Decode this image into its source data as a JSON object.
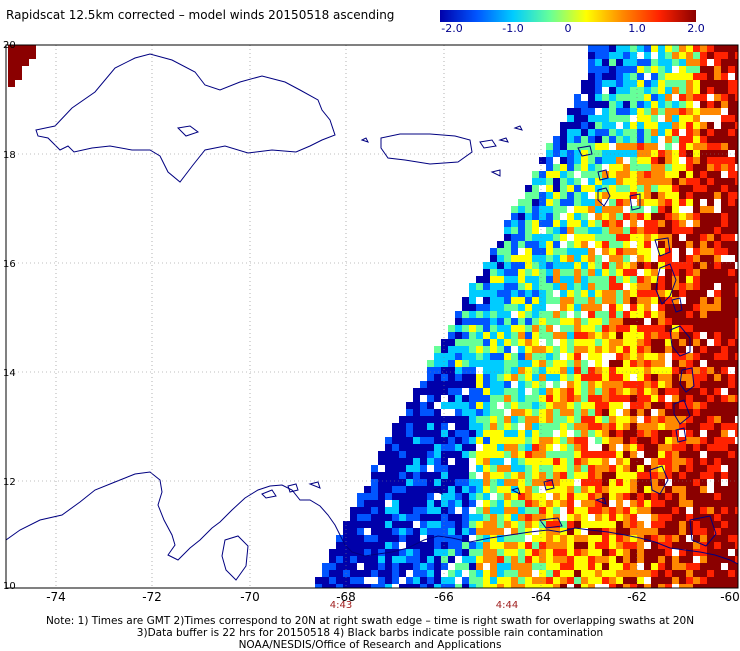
{
  "title": "Rapidscat 12.5km corrected – model winds 20150518 ascending",
  "colorbar": {
    "ticks": [
      "-2.0",
      "-1.0",
      "0",
      "1.0",
      "2.0"
    ],
    "colors": [
      "#0000aa",
      "#0055ff",
      "#00ccff",
      "#66ff99",
      "#ffff00",
      "#ff8800",
      "#ff2200",
      "#8b0000"
    ]
  },
  "axes": {
    "lon_ticks": [
      "-74",
      "-72",
      "-70",
      "-68",
      "-66",
      "-64",
      "-62",
      "-60"
    ],
    "lat_ticks": [
      "20",
      "18",
      "16",
      "14",
      "12",
      "10"
    ]
  },
  "swath_times": [
    "4:43",
    "4:44"
  ],
  "notes": [
    "Note: 1) Times are GMT 2)Times correspond to 20N at right swath edge – time is right swath for overlapping swaths at 20N",
    "3)Data buffer is 22 hrs for 20150518 4) Black barbs indicate possible rain contamination",
    "NOAA/NESDIS/Office of Research and Applications"
  ]
}
